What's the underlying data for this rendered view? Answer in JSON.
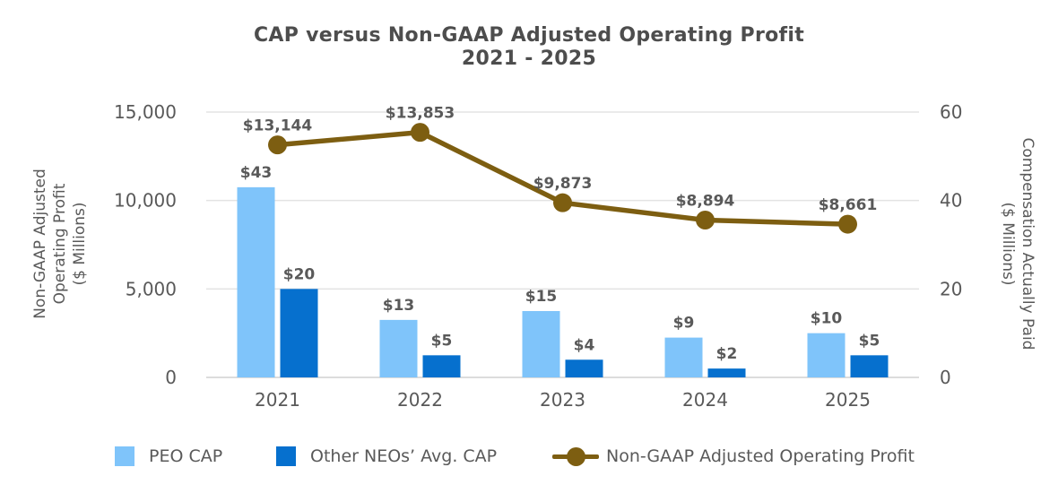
{
  "title": {
    "line1": "CAP versus Non-GAAP Adjusted Operating Profit",
    "line2": "2021 - 2025"
  },
  "chart_data": {
    "type": "combo-bar-line",
    "categories": [
      "2021",
      "2022",
      "2023",
      "2024",
      "2025"
    ],
    "series": [
      {
        "name": "PEO CAP",
        "type": "bar",
        "axis": "right",
        "color": "#7FC4FA",
        "values": [
          43,
          13,
          15,
          9,
          10
        ],
        "labels": [
          "$43",
          "$13",
          "$15",
          "$9",
          "$10"
        ]
      },
      {
        "name": "Other NEOs’ Avg. CAP",
        "type": "bar",
        "axis": "right",
        "color": "#0670CE",
        "values": [
          20,
          5,
          4,
          2,
          5
        ],
        "labels": [
          "$20",
          "$5",
          "$4",
          "$2",
          "$5"
        ]
      },
      {
        "name": "Non-GAAP Adjusted Operating Profit",
        "type": "line",
        "axis": "left",
        "color": "#7D5E11",
        "values": [
          13144,
          13853,
          9873,
          8894,
          8661
        ],
        "labels": [
          "$13,144",
          "$13,853",
          "$9,873",
          "$8,894",
          "$8,661"
        ]
      }
    ],
    "left_axis": {
      "title_lines": [
        "Non-GAAP Adjusted",
        "Operating Profit",
        "($ Millions)"
      ],
      "min": 0,
      "max": 15000,
      "ticks": [
        0,
        5000,
        10000,
        15000
      ],
      "tick_labels": [
        "0",
        "5,000",
        "10,000",
        "15,000"
      ]
    },
    "right_axis": {
      "title_lines": [
        "Compensation Actually Paid",
        "($ Millions)"
      ],
      "min": 0,
      "max": 60,
      "ticks": [
        0,
        20,
        40,
        60
      ],
      "tick_labels": [
        "0",
        "20",
        "40",
        "60"
      ]
    },
    "grid": true,
    "legend_position": "bottom"
  },
  "colors": {
    "title_text": "#4D4D4D",
    "axis_text": "#595959",
    "data_label_text": "#595959",
    "gridline": "#E3E3E3",
    "axis_line": "#DCDCDC",
    "background": "#FFFFFF"
  }
}
